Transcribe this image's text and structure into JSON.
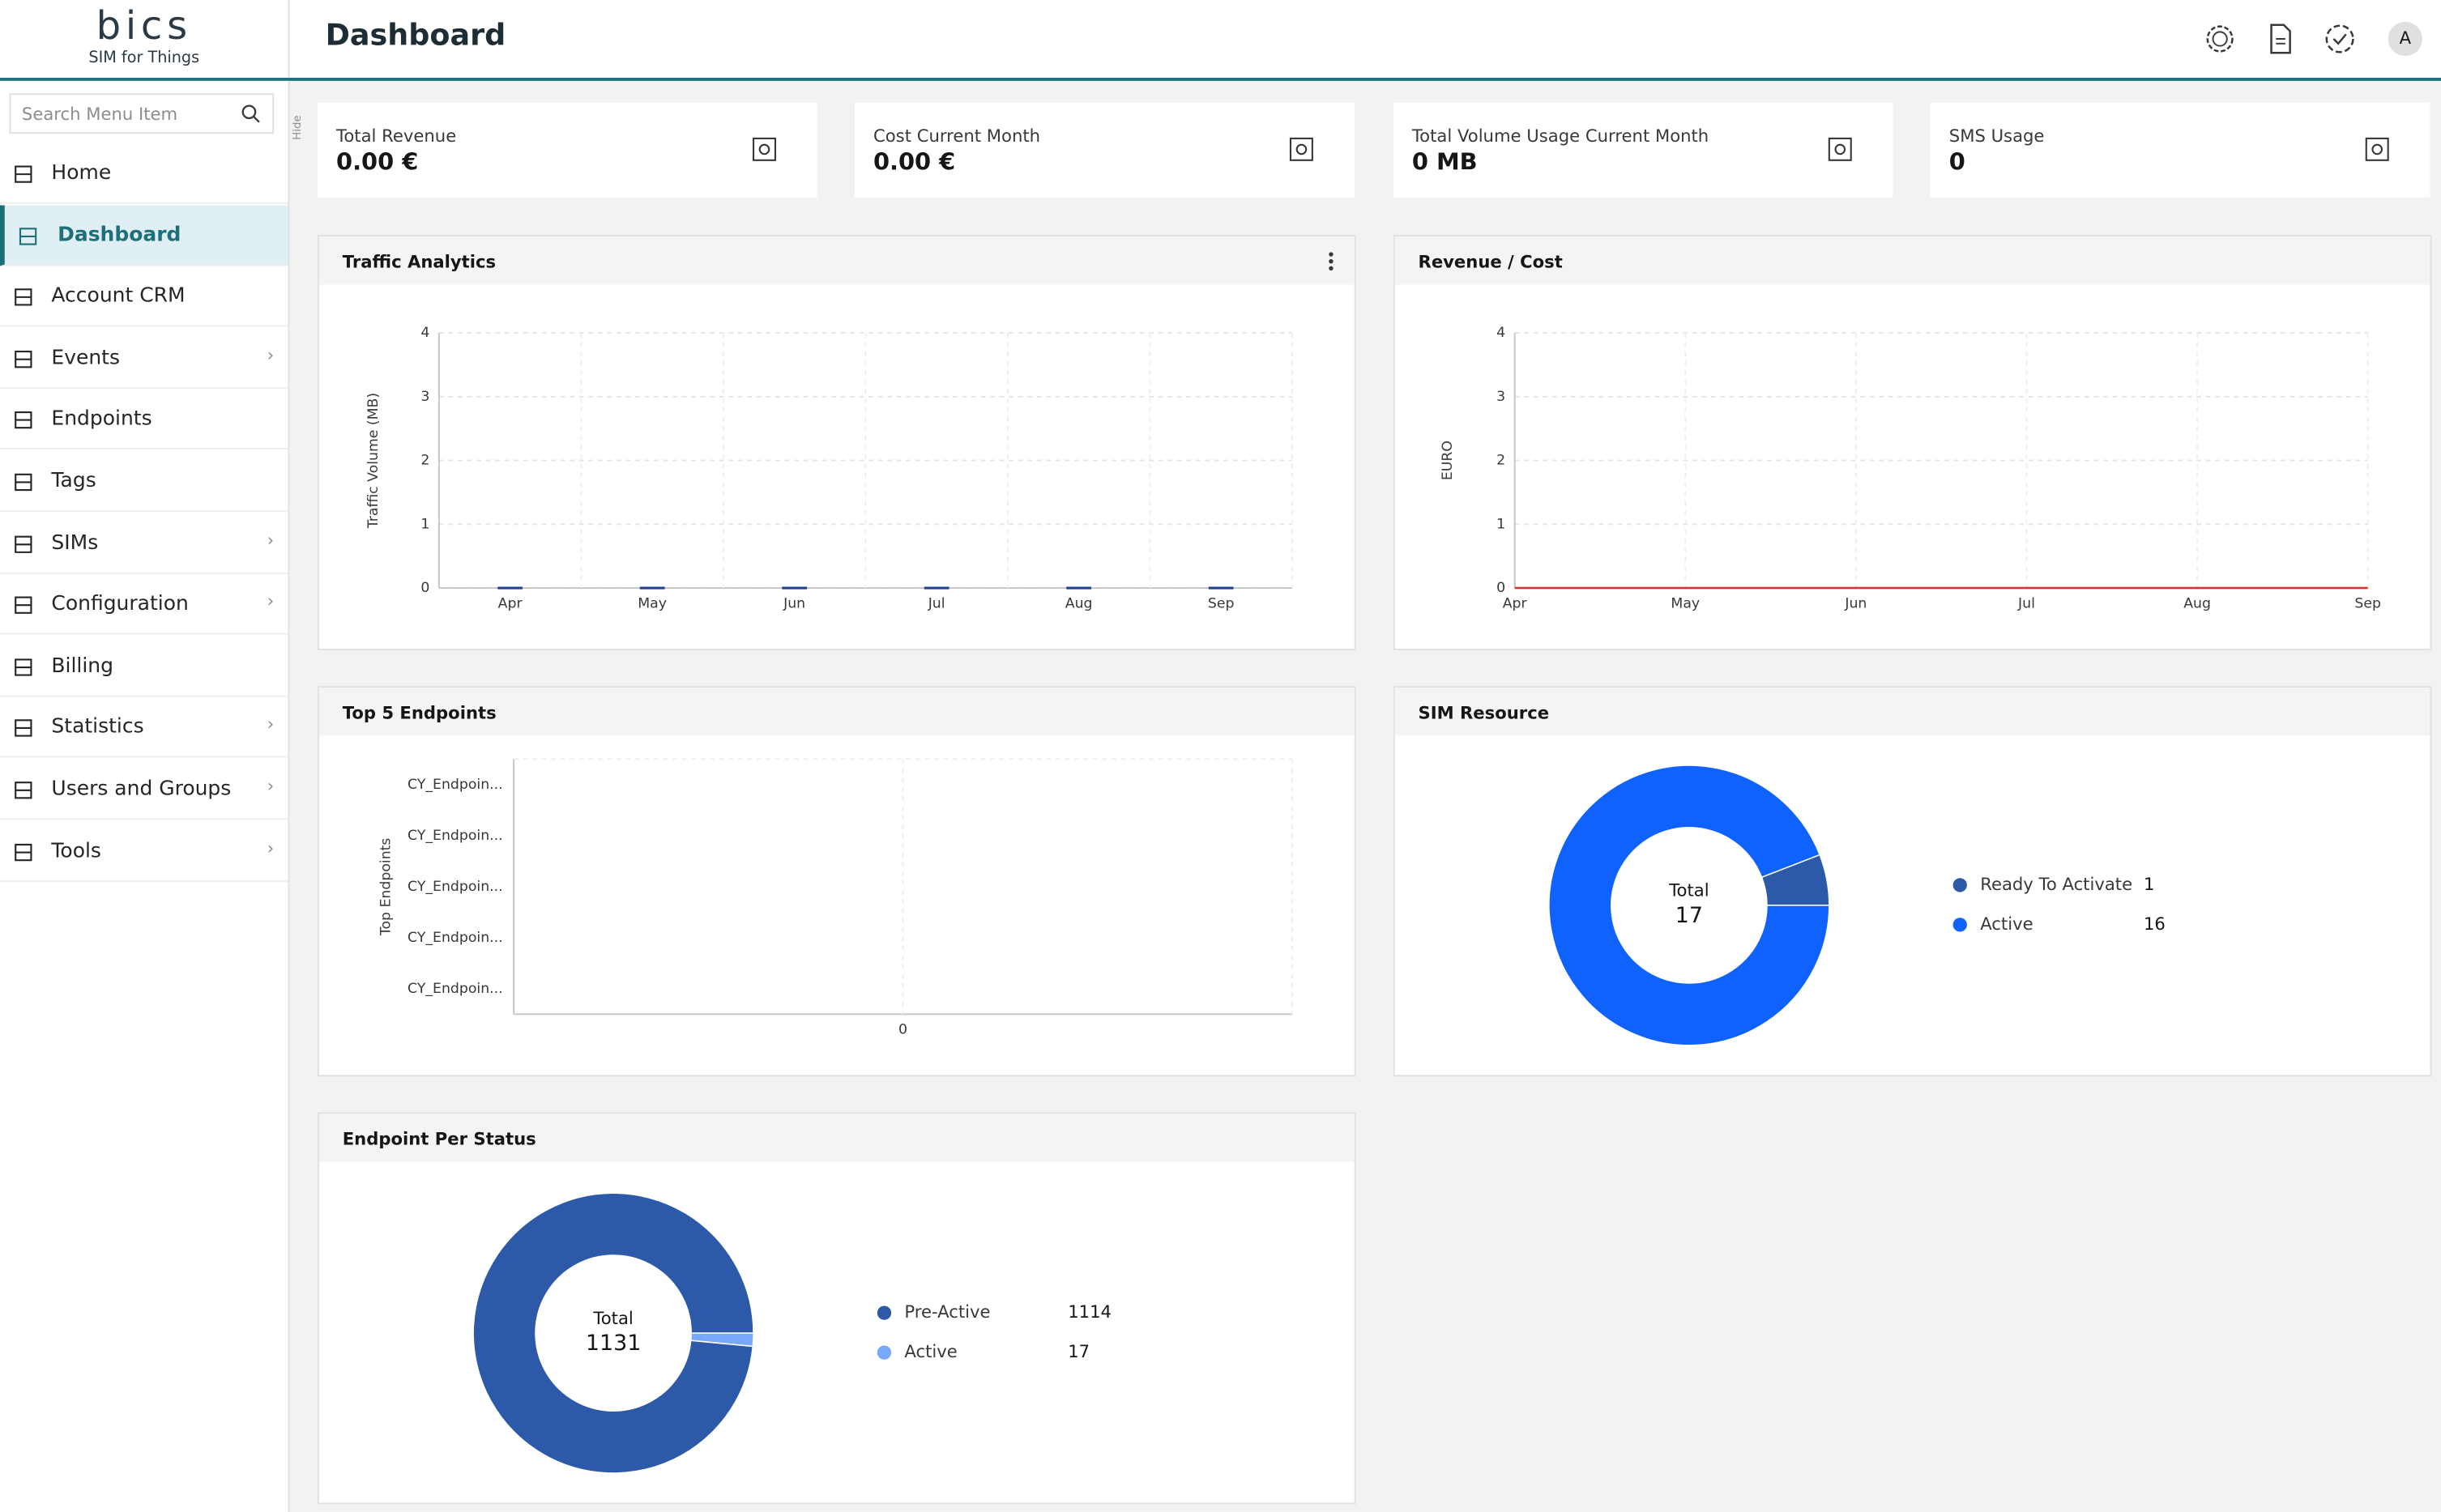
{
  "logo": {
    "brand": "bics",
    "tagline": "SIM for Things"
  },
  "header": {
    "title": "Dashboard",
    "avatar": "A"
  },
  "sidebar": {
    "search_placeholder": "Search Menu Item",
    "hide": "Hide",
    "active_index": 1,
    "items": [
      {
        "label": "Home",
        "submenu": false
      },
      {
        "label": "Dashboard",
        "submenu": false
      },
      {
        "label": "Account CRM",
        "submenu": false
      },
      {
        "label": "Events",
        "submenu": true
      },
      {
        "label": "Endpoints",
        "submenu": false
      },
      {
        "label": "Tags",
        "submenu": false
      },
      {
        "label": "SIMs",
        "submenu": true
      },
      {
        "label": "Configuration",
        "submenu": true
      },
      {
        "label": "Billing",
        "submenu": false
      },
      {
        "label": "Statistics",
        "submenu": true
      },
      {
        "label": "Users and Groups",
        "submenu": true
      },
      {
        "label": "Tools",
        "submenu": true
      }
    ]
  },
  "kpis": [
    {
      "label": "Total Revenue",
      "value": "0.00 €"
    },
    {
      "label": "Cost Current Month",
      "value": "0.00 €"
    },
    {
      "label": "Total Volume Usage Current Month",
      "value": "0 MB"
    },
    {
      "label": "SMS Usage",
      "value": "0"
    }
  ],
  "chart_data": [
    {
      "type": "bar",
      "title": "Traffic Analytics",
      "y_label": "Traffic Volume (MB)",
      "categories": [
        "Apr",
        "May",
        "Jun",
        "Jul",
        "Aug",
        "Sep"
      ],
      "values": [
        0,
        0,
        0,
        0,
        0,
        0
      ],
      "color": "#1f3f8f",
      "ylim": [
        0,
        4
      ],
      "yticks": [
        0,
        1,
        2,
        3,
        4
      ],
      "grid": true
    },
    {
      "type": "line",
      "title": "Revenue / Cost",
      "y_label": "EURO",
      "categories": [
        "Apr",
        "May",
        "Jun",
        "Jul",
        "Aug",
        "Sep"
      ],
      "values": [
        0,
        0,
        0,
        0,
        0,
        0
      ],
      "color": "#d9302a",
      "ylim": [
        0,
        4
      ],
      "yticks": [
        0,
        1,
        2,
        3,
        4
      ],
      "grid": true
    },
    {
      "type": "hbar",
      "title": "Top 5 Endpoints",
      "y_label": "Top Endpoints",
      "categories": [
        "CY_Endpoin...",
        "CY_Endpoin...",
        "CY_Endpoin...",
        "CY_Endpoin...",
        "CY_Endpoin..."
      ],
      "values": [
        0,
        0,
        0,
        0,
        0
      ],
      "color": "#2c5aa8",
      "xlim": [
        -1,
        1
      ],
      "xticks": [
        0
      ],
      "grid": true
    },
    {
      "type": "donut",
      "title": "SIM Resource",
      "center_label": "Total",
      "total": 17,
      "series": [
        {
          "name": "Ready To Activate",
          "value": 1,
          "color": "#2c5aa8"
        },
        {
          "name": "Active",
          "value": 16,
          "color": "#0f62fe"
        }
      ]
    },
    {
      "type": "donut",
      "title": "Endpoint Per Status",
      "center_label": "Total",
      "total": 1131,
      "series": [
        {
          "name": "Pre-Active",
          "value": 1114,
          "color": "#2c5aa8"
        },
        {
          "name": "Active",
          "value": 17,
          "color": "#78a9ff"
        }
      ]
    }
  ]
}
